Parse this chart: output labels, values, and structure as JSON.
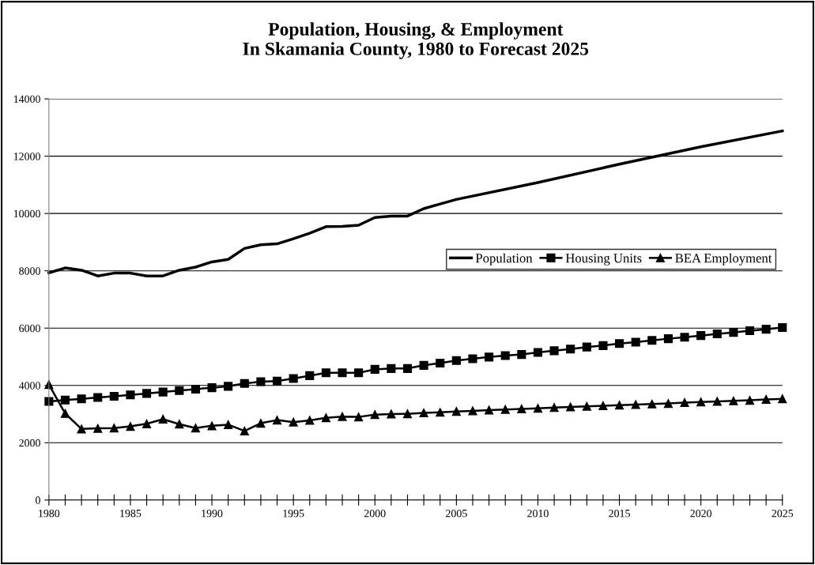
{
  "chart_data": {
    "type": "line",
    "title": "Population, Housing, & Employment\nIn Skamania County, 1980 to Forecast 2025",
    "xlim": [
      1980,
      2025
    ],
    "ylim": [
      0,
      14000
    ],
    "yticks": [
      0,
      2000,
      4000,
      6000,
      8000,
      10000,
      12000,
      14000
    ],
    "xticks": [
      1980,
      {
        "value": 1981,
        "label": null
      },
      {
        "value": 1982,
        "label": null
      },
      {
        "value": 1983,
        "label": null
      },
      {
        "value": 1984,
        "label": null
      },
      1985,
      {
        "value": 1986,
        "label": null
      },
      {
        "value": 1987,
        "label": null
      },
      {
        "value": 1988,
        "label": null
      },
      {
        "value": 1989,
        "label": null
      },
      1990,
      {
        "value": 1991,
        "label": null
      },
      {
        "value": 1992,
        "label": null
      },
      {
        "value": 1993,
        "label": null
      },
      {
        "value": 1994,
        "label": null
      },
      1995,
      {
        "value": 1996,
        "label": null
      },
      {
        "value": 1997,
        "label": null
      },
      {
        "value": 1998,
        "label": null
      },
      {
        "value": 1999,
        "label": null
      },
      2000,
      {
        "value": 2001,
        "label": null
      },
      {
        "value": 2002,
        "label": null
      },
      {
        "value": 2003,
        "label": null
      },
      {
        "value": 2004,
        "label": null
      },
      2005,
      {
        "value": 2006,
        "label": null
      },
      {
        "value": 2007,
        "label": null
      },
      {
        "value": 2008,
        "label": null
      },
      {
        "value": 2009,
        "label": null
      },
      2010,
      {
        "value": 2011,
        "label": null
      },
      {
        "value": 2012,
        "label": null
      },
      {
        "value": 2013,
        "label": null
      },
      {
        "value": 2014,
        "label": null
      },
      2015,
      {
        "value": 2016,
        "label": null
      },
      {
        "value": 2017,
        "label": null
      },
      {
        "value": 2018,
        "label": null
      },
      {
        "value": 2019,
        "label": null
      },
      2020,
      {
        "value": 2021,
        "label": null
      },
      {
        "value": 2022,
        "label": null
      },
      {
        "value": 2023,
        "label": null
      },
      {
        "value": 2024,
        "label": null
      },
      2025
    ],
    "grid": "y",
    "legend": "center right",
    "line_style": "solid",
    "series": [
      {
        "name": "Population",
        "color": "#000000",
        "marker": "none",
        "x": [
          1980,
          1981,
          1982,
          1983,
          1984,
          1985,
          1986,
          1987,
          1988,
          1989,
          1990,
          1991,
          1992,
          1993,
          1994,
          1995,
          1996,
          1997,
          1998,
          1999,
          2000,
          2001,
          2002,
          2003,
          2004,
          2005,
          2010,
          2015,
          2020,
          2025
        ],
        "values": [
          7930,
          8100,
          8020,
          7820,
          7920,
          7920,
          7820,
          7820,
          8020,
          8130,
          8310,
          8400,
          8780,
          8910,
          8940,
          9120,
          9310,
          9540,
          9550,
          9590,
          9860,
          9910,
          9910,
          10170,
          10330,
          10490,
          11080,
          11720,
          12330,
          12880
        ]
      },
      {
        "name": "Housing Units",
        "color": "#000000",
        "marker": "square",
        "x": [
          1980,
          1981,
          1982,
          1983,
          1984,
          1985,
          1986,
          1987,
          1988,
          1989,
          1990,
          1991,
          1992,
          1993,
          1994,
          1995,
          1996,
          1997,
          1998,
          1999,
          2000,
          2001,
          2002,
          2003,
          2004,
          2005,
          2006,
          2007,
          2008,
          2009,
          2010,
          2011,
          2012,
          2013,
          2014,
          2015,
          2016,
          2017,
          2018,
          2019,
          2020,
          2021,
          2022,
          2023,
          2024,
          2025
        ],
        "values": [
          3440,
          3490,
          3530,
          3580,
          3620,
          3670,
          3720,
          3770,
          3820,
          3870,
          3920,
          3970,
          4070,
          4130,
          4150,
          4240,
          4340,
          4440,
          4440,
          4440,
          4560,
          4590,
          4590,
          4700,
          4780,
          4870,
          4930,
          4990,
          5040,
          5080,
          5150,
          5210,
          5270,
          5340,
          5390,
          5460,
          5510,
          5570,
          5630,
          5680,
          5740,
          5800,
          5850,
          5910,
          5960,
          6020
        ]
      },
      {
        "name": "BEA Employment",
        "color": "#000000",
        "marker": "triangle",
        "x": [
          1980,
          1981,
          1982,
          1983,
          1984,
          1985,
          1986,
          1987,
          1988,
          1989,
          1990,
          1991,
          1992,
          1993,
          1994,
          1995,
          1996,
          1997,
          1998,
          1999,
          2000,
          2001,
          2002,
          2003,
          2004,
          2005,
          2006,
          2007,
          2008,
          2009,
          2010,
          2011,
          2012,
          2013,
          2014,
          2015,
          2016,
          2017,
          2018,
          2019,
          2020,
          2021,
          2022,
          2023,
          2024,
          2025
        ],
        "values": [
          4030,
          3020,
          2480,
          2500,
          2510,
          2570,
          2660,
          2820,
          2650,
          2510,
          2590,
          2630,
          2410,
          2680,
          2790,
          2720,
          2780,
          2870,
          2910,
          2900,
          2980,
          3000,
          3010,
          3040,
          3060,
          3090,
          3110,
          3140,
          3160,
          3180,
          3200,
          3230,
          3250,
          3270,
          3290,
          3310,
          3330,
          3350,
          3370,
          3400,
          3420,
          3440,
          3460,
          3480,
          3510,
          3530
        ]
      }
    ]
  }
}
